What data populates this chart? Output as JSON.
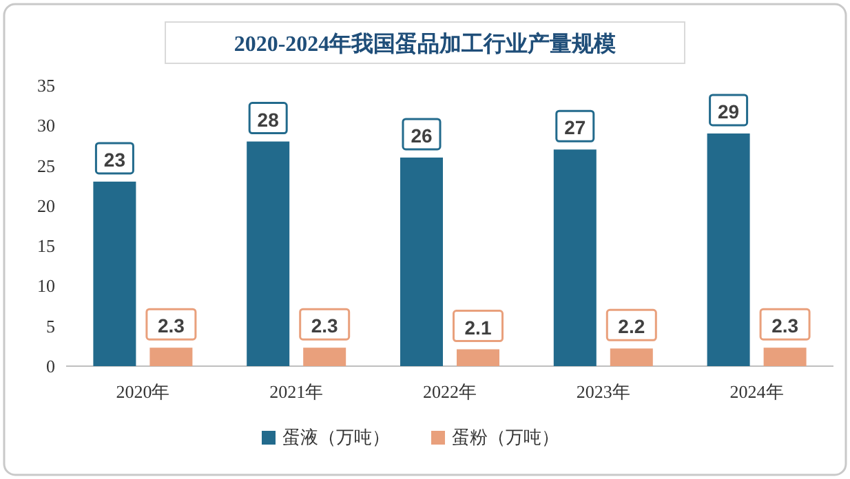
{
  "chart_data": {
    "type": "bar",
    "title": "2020-2024年我国蛋品加工行业产量规模",
    "categories": [
      "2020年",
      "2021年",
      "2022年",
      "2023年",
      "2024年"
    ],
    "series": [
      {
        "name": "蛋液（万吨）",
        "color": "#226a8c",
        "values": [
          23,
          28,
          26,
          27,
          29
        ]
      },
      {
        "name": "蛋粉（万吨）",
        "color": "#e9a07c",
        "values": [
          2.3,
          2.3,
          2.1,
          2.2,
          2.3
        ]
      }
    ],
    "ylim": [
      0,
      35
    ],
    "yticks": [
      0,
      5,
      10,
      15,
      20,
      25,
      30,
      35
    ],
    "grid": false,
    "legend": "bottom",
    "data_labels": true
  }
}
